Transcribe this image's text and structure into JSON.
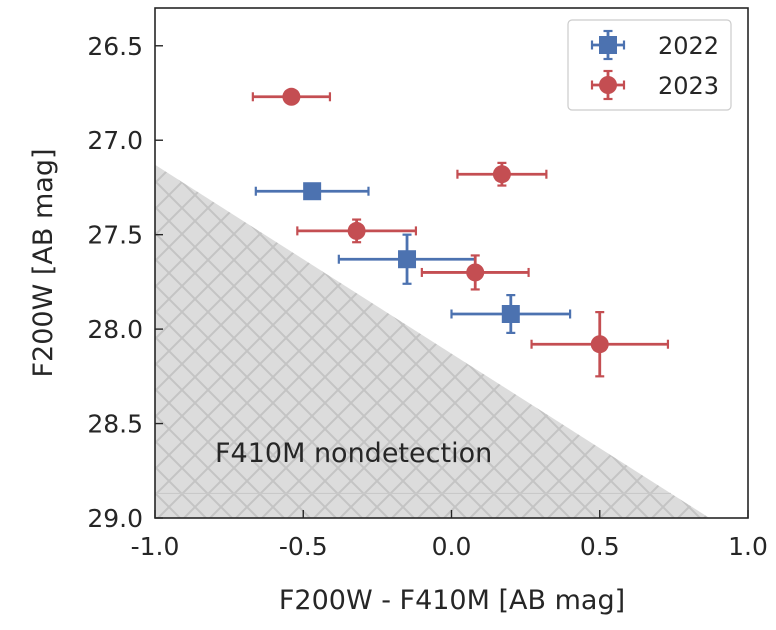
{
  "chart_data": {
    "type": "scatter",
    "xlabel": "F200W - F410M [AB mag]",
    "ylabel": "F200W [AB mag]",
    "xlim": [
      -1.0,
      1.0
    ],
    "ylim": [
      29.0,
      26.3
    ],
    "y_inverted": true,
    "xticks": [
      "-1.0",
      "-0.5",
      "0.0",
      "0.5",
      "1.0"
    ],
    "yticks": [
      "26.5",
      "27.0",
      "27.5",
      "28.0",
      "28.5",
      "29.0"
    ],
    "grid": false,
    "legend_position": "top-right",
    "annotation": "F410M nondetection",
    "nondetection_region": {
      "boundary_line": [
        [
          -1.0,
          27.13
        ],
        [
          0.87,
          29.0
        ]
      ],
      "fill": "hatched gray below line"
    },
    "series": [
      {
        "name": "2022",
        "marker": "square",
        "color": "#4c72b0",
        "points": [
          {
            "x": -0.47,
            "y": 27.27,
            "xerr": 0.19,
            "yerr": 0.04
          },
          {
            "x": -0.15,
            "y": 27.63,
            "xerr": 0.23,
            "yerr": 0.13
          },
          {
            "x": 0.2,
            "y": 27.92,
            "xerr": 0.2,
            "yerr": 0.1
          }
        ]
      },
      {
        "name": "2023",
        "marker": "circle",
        "color": "#c44e52",
        "points": [
          {
            "x": -0.54,
            "y": 26.77,
            "xerr": 0.13,
            "yerr": 0.03
          },
          {
            "x": 0.17,
            "y": 27.18,
            "xerr": 0.15,
            "yerr": 0.06
          },
          {
            "x": -0.32,
            "y": 27.48,
            "xerr": 0.2,
            "yerr": 0.06
          },
          {
            "x": 0.08,
            "y": 27.7,
            "xerr": 0.18,
            "yerr": 0.09
          },
          {
            "x": 0.5,
            "y": 28.08,
            "xerr": 0.23,
            "yerr": 0.17
          }
        ]
      }
    ]
  }
}
